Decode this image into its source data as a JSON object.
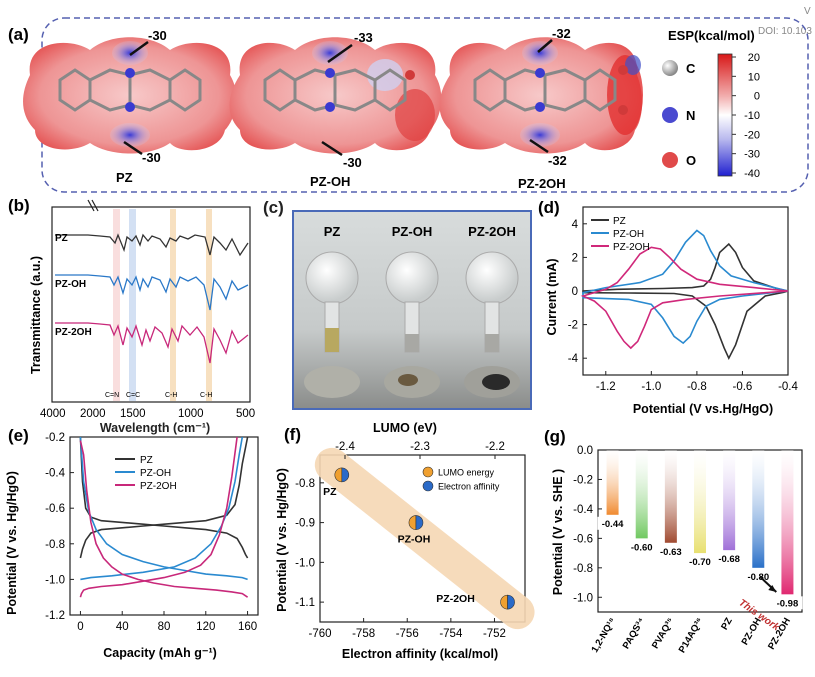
{
  "corner_text": {
    "top": "V",
    "doi": "DOI: 10.103"
  },
  "panel_a": {
    "label": "(a)",
    "molecules": [
      {
        "name": "PZ",
        "top_value": "-30",
        "bottom_value": "-30"
      },
      {
        "name": "PZ-OH",
        "top_value": "-33",
        "bottom_value": "-30"
      },
      {
        "name": "PZ-2OH",
        "top_value": "-32",
        "bottom_value": "-32"
      }
    ],
    "esp_title": "ESP(kcal/mol)",
    "esp_ticks": [
      "20",
      "10",
      "0",
      "-10",
      "-20",
      "-30",
      "-40"
    ],
    "atoms": [
      {
        "symbol": "C",
        "color": "#9a9a9a"
      },
      {
        "symbol": "N",
        "color": "#3a3ad0"
      },
      {
        "symbol": "O",
        "color": "#d83a3a"
      }
    ]
  },
  "panel_b": {
    "label": "(b)",
    "ylabel": "Transmittance (a.u.)",
    "xlabel": "Wavelength (cm⁻¹)",
    "xticks": [
      "4000",
      "2000",
      "1500",
      "1000",
      "500"
    ],
    "traces": [
      {
        "name": "PZ",
        "color": "#333333"
      },
      {
        "name": "PZ-OH",
        "color": "#2a78c8"
      },
      {
        "name": "PZ-2OH",
        "color": "#c8287a"
      }
    ],
    "band_labels": [
      "C=N",
      "C=C",
      "C-H",
      "C-H"
    ]
  },
  "panel_c": {
    "label": "(c)",
    "columns": [
      "PZ",
      "PZ-OH",
      "PZ-2OH"
    ]
  },
  "panel_d": {
    "label": "(d)",
    "ylabel": "Current  (mA)",
    "xlabel": "Potential (V vs.Hg/HgO)",
    "legend": [
      "PZ",
      "PZ-OH",
      "PZ-2OH"
    ],
    "colors": [
      "#333333",
      "#2a8ad0",
      "#d0287a"
    ],
    "chart_data": {
      "type": "line",
      "xlim": [
        -1.3,
        -0.4
      ],
      "ylim": [
        -5,
        5
      ],
      "xticks": [
        "-1.2",
        "-1.0",
        "-0.8",
        "-0.6",
        "-0.4"
      ],
      "yticks": [
        "4",
        "2",
        "0",
        "-2",
        "-4"
      ],
      "series": [
        {
          "name": "PZ",
          "x": [
            -1.3,
            -1.1,
            -0.9,
            -0.82,
            -0.76,
            -0.72,
            -0.68,
            -0.66,
            -0.63,
            -0.58,
            -0.5,
            -0.42,
            -0.4,
            -0.45,
            -0.55,
            -0.6,
            -0.63,
            -0.66,
            -0.7,
            -0.72,
            -0.74,
            -0.77,
            -0.82,
            -0.95,
            -1.15,
            -1.3
          ],
          "y": [
            -0.1,
            -0.12,
            -0.15,
            -0.3,
            -0.9,
            -2,
            -3.4,
            -4,
            -3.2,
            -1.2,
            -0.3,
            -0.08,
            0,
            0.15,
            0.6,
            1.4,
            2.3,
            2.8,
            2.3,
            1.4,
            0.7,
            0.3,
            0.2,
            0.15,
            0.1,
            0
          ]
        },
        {
          "name": "PZ-OH",
          "x": [
            -1.3,
            -1.1,
            -1.0,
            -0.95,
            -0.9,
            -0.86,
            -0.83,
            -0.8,
            -0.76,
            -0.7,
            -0.6,
            -0.5,
            -0.4,
            -0.55,
            -0.65,
            -0.7,
            -0.74,
            -0.77,
            -0.8,
            -0.85,
            -0.9,
            -0.95,
            -1.05,
            -1.2,
            -1.3
          ],
          "y": [
            -0.4,
            -0.5,
            -0.8,
            -1.6,
            -2.7,
            -3.1,
            -2.7,
            -1.8,
            -0.9,
            -0.5,
            -0.3,
            -0.15,
            0,
            0.5,
            0.9,
            1.5,
            2.4,
            3.3,
            3.6,
            2.9,
            1.8,
            1.0,
            0.5,
            0.2,
            -0.1
          ]
        },
        {
          "name": "PZ-2OH",
          "x": [
            -1.3,
            -1.25,
            -1.2,
            -1.15,
            -1.12,
            -1.09,
            -1.06,
            -1.03,
            -1.0,
            -0.95,
            -0.85,
            -0.7,
            -0.5,
            -0.4,
            -0.55,
            -0.7,
            -0.8,
            -0.87,
            -0.92,
            -0.96,
            -1.0,
            -1.05,
            -1.1,
            -1.15,
            -1.2,
            -1.3
          ],
          "y": [
            -0.3,
            -0.6,
            -1.2,
            -2.4,
            -3.0,
            -3.4,
            -3.0,
            -2.1,
            -1.1,
            -0.7,
            -0.5,
            -0.3,
            -0.1,
            0,
            0.2,
            0.4,
            0.7,
            1.3,
            2.0,
            2.5,
            2.6,
            2.2,
            1.3,
            0.5,
            0.1,
            -0.3
          ]
        }
      ]
    }
  },
  "panel_e": {
    "label": "(e)",
    "ylabel": "Potential (V vs. Hg/HgO)",
    "xlabel": "Capacity (mAh g⁻¹)",
    "legend": [
      "PZ",
      "PZ-OH",
      "PZ-2OH"
    ],
    "colors": [
      "#333333",
      "#2a8ad0",
      "#c8287a"
    ],
    "chart_data": {
      "type": "line",
      "xlim": [
        -10,
        170
      ],
      "ylim": [
        -1.2,
        -0.2
      ],
      "xticks": [
        "0",
        "40",
        "80",
        "120",
        "160"
      ],
      "yticks": [
        "-0.2",
        "-0.4",
        "-0.6",
        "-0.8",
        "-1.0",
        "-1.2"
      ],
      "series": [
        {
          "name": "PZ discharge",
          "x": [
            0,
            2,
            5,
            10,
            20,
            40,
            60,
            80,
            100,
            120,
            140,
            150,
            155,
            158,
            160
          ],
          "y": [
            -0.2,
            -0.45,
            -0.6,
            -0.65,
            -0.67,
            -0.68,
            -0.69,
            -0.7,
            -0.71,
            -0.72,
            -0.74,
            -0.77,
            -0.82,
            -0.86,
            -0.88
          ]
        },
        {
          "name": "PZ charge",
          "x": [
            0,
            2,
            5,
            10,
            20,
            40,
            60,
            80,
            100,
            120,
            140,
            148,
            152,
            155,
            158,
            160
          ],
          "y": [
            -0.88,
            -0.83,
            -0.78,
            -0.74,
            -0.72,
            -0.71,
            -0.7,
            -0.69,
            -0.68,
            -0.67,
            -0.64,
            -0.58,
            -0.47,
            -0.35,
            -0.26,
            -0.2
          ]
        },
        {
          "name": "PZ-OH discharge",
          "x": [
            0,
            3,
            8,
            15,
            25,
            40,
            60,
            80,
            100,
            120,
            140,
            155,
            160
          ],
          "y": [
            -0.2,
            -0.45,
            -0.62,
            -0.72,
            -0.8,
            -0.86,
            -0.9,
            -0.93,
            -0.95,
            -0.97,
            -0.98,
            -0.99,
            -1.0
          ]
        },
        {
          "name": "PZ-OH charge",
          "x": [
            0,
            10,
            30,
            60,
            90,
            110,
            125,
            135,
            142,
            148,
            152,
            155
          ],
          "y": [
            -1.0,
            -0.99,
            -0.98,
            -0.96,
            -0.93,
            -0.88,
            -0.8,
            -0.7,
            -0.6,
            -0.45,
            -0.3,
            -0.2
          ]
        },
        {
          "name": "PZ-2OH discharge",
          "x": [
            0,
            3,
            6,
            10,
            15,
            22,
            30,
            40,
            55,
            70,
            90,
            110,
            130,
            145,
            155,
            160
          ],
          "y": [
            -0.22,
            -0.3,
            -0.5,
            -0.68,
            -0.8,
            -0.88,
            -0.93,
            -0.97,
            -1.0,
            -1.02,
            -1.04,
            -1.05,
            -1.06,
            -1.07,
            -1.08,
            -1.1
          ]
        },
        {
          "name": "PZ-2OH charge",
          "x": [
            0,
            1,
            3,
            8,
            20,
            40,
            60,
            80,
            100,
            115,
            125,
            133,
            140,
            145,
            150
          ],
          "y": [
            -1.1,
            -1.08,
            -1.06,
            -1.05,
            -1.04,
            -1.03,
            -1.01,
            -0.99,
            -0.96,
            -0.92,
            -0.86,
            -0.75,
            -0.6,
            -0.42,
            -0.2
          ]
        }
      ]
    }
  },
  "panel_f": {
    "label": "(f)",
    "ylabel": "Potential (V vs. Hg/HgO)",
    "xlabel": "Electron affinity (kcal/mol)",
    "top_axis_label": "LUMO (eV)",
    "legend": [
      "LUMO energy",
      "Electron affinity"
    ],
    "legend_colors": [
      "#f0a030",
      "#2a6ac8"
    ],
    "chart_data": {
      "type": "scatter",
      "xlim": [
        -760,
        -750.6
      ],
      "ylim": [
        -1.15,
        -0.73
      ],
      "xticks": [
        "-760",
        "-758",
        "-756",
        "-754",
        "-752"
      ],
      "yticks": [
        "-0.8",
        "-0.9",
        "-1.0",
        "-1.1"
      ],
      "top_ticks": [
        "-2.4",
        "-2.3",
        "-2.2"
      ],
      "points": [
        {
          "label": "PZ",
          "x": -759.0,
          "y": -0.78
        },
        {
          "label": "PZ-OH",
          "x": -755.6,
          "y": -0.9
        },
        {
          "label": "PZ-2OH",
          "x": -751.4,
          "y": -1.1
        }
      ]
    }
  },
  "panel_g": {
    "label": "(g)",
    "ylabel": "Potential (V vs. SHE )",
    "annotation": "This work",
    "chart_data": {
      "type": "bar",
      "ylim": [
        -1.1,
        0
      ],
      "yticks": [
        "0.0",
        "-0.2",
        "-0.4",
        "-0.6",
        "-0.8",
        "-1.0"
      ],
      "categories": [
        "1,2-NQ¹⁸",
        "PAQS³⁴",
        "PVAQ³⁵",
        "P14AQ³⁶",
        "PZ",
        "PZ-OH",
        "PZ-2OH"
      ],
      "values": [
        -0.44,
        -0.6,
        -0.63,
        -0.7,
        -0.68,
        -0.8,
        -0.98
      ],
      "value_labels": [
        "-0.44",
        "-0.60",
        "-0.63",
        "-0.70",
        "-0.68",
        "-0.80",
        "-0.98"
      ],
      "colors": [
        "#f08a30",
        "#70c860",
        "#a04a30",
        "#e8e070",
        "#a070d8",
        "#2a70c8",
        "#e02870"
      ]
    }
  }
}
